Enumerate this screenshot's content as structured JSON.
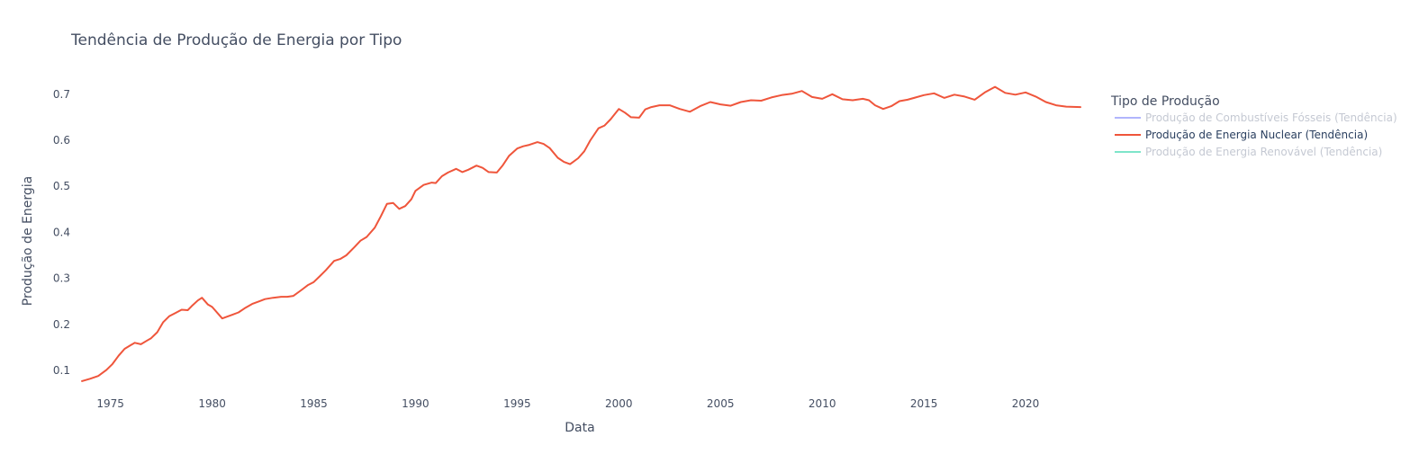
{
  "chart_data": {
    "type": "line",
    "title": "Tendência de Produção de Energia por Tipo",
    "xlabel": "Data",
    "ylabel": "Produção de Energia",
    "xlim": [
      1973.6,
      2022.7
    ],
    "ylim": [
      0.065,
      0.725
    ],
    "xticks": [
      1975,
      1980,
      1985,
      1990,
      1995,
      2000,
      2005,
      2010,
      2015,
      2020
    ],
    "yticks": [
      0.1,
      0.2,
      0.3,
      0.4,
      0.5,
      0.6,
      0.7
    ],
    "ytick_labels": [
      "0.1",
      "0.2",
      "0.3",
      "0.4",
      "0.5",
      "0.6",
      "0.7"
    ],
    "grid": false,
    "legend": {
      "title": "Tipo de Produção",
      "placement": "right",
      "entries": [
        {
          "name": "Produção de Combustíveis Fósseis (Tendência)",
          "color": "#636efa",
          "visible": false
        },
        {
          "name": "Produção de Energia Nuclear (Tendência)",
          "color": "#ef553b",
          "visible": true
        },
        {
          "name": "Produção de Energia Renovável (Tendência)",
          "color": "#00cc96",
          "visible": false
        }
      ]
    },
    "series": [
      {
        "name": "Produção de Energia Nuclear (Tendência)",
        "color": "#ef553b",
        "x": [
          1973.6,
          1974.0,
          1974.4,
          1974.8,
          1975.1,
          1975.4,
          1975.7,
          1976.0,
          1976.2,
          1976.5,
          1976.8,
          1977.0,
          1977.3,
          1977.6,
          1977.9,
          1978.2,
          1978.5,
          1978.8,
          1979.0,
          1979.3,
          1979.5,
          1979.8,
          1980.0,
          1980.5,
          1981.0,
          1981.3,
          1981.6,
          1982.0,
          1982.3,
          1982.6,
          1983.0,
          1983.4,
          1983.7,
          1984.0,
          1984.4,
          1984.7,
          1985.0,
          1985.3,
          1985.6,
          1986.0,
          1986.3,
          1986.6,
          1987.0,
          1987.3,
          1987.6,
          1988.0,
          1988.3,
          1988.6,
          1988.9,
          1989.2,
          1989.5,
          1989.8,
          1990.0,
          1990.4,
          1990.8,
          1991.0,
          1991.3,
          1991.6,
          1992.0,
          1992.3,
          1992.6,
          1993.0,
          1993.3,
          1993.6,
          1994.0,
          1994.3,
          1994.6,
          1995.0,
          1995.3,
          1995.6,
          1996.0,
          1996.3,
          1996.6,
          1997.0,
          1997.3,
          1997.6,
          1998.0,
          1998.3,
          1998.6,
          1999.0,
          1999.3,
          1999.6,
          2000.0,
          2000.3,
          2000.6,
          2001.0,
          2001.3,
          2001.6,
          2002.0,
          2002.5,
          2003.0,
          2003.5,
          2004.0,
          2004.5,
          2005.0,
          2005.5,
          2006.0,
          2006.5,
          2007.0,
          2007.5,
          2008.0,
          2008.5,
          2009.0,
          2009.5,
          2010.0,
          2010.5,
          2011.0,
          2011.5,
          2012.0,
          2012.3,
          2012.6,
          2013.0,
          2013.4,
          2013.8,
          2014.2,
          2014.6,
          2015.0,
          2015.5,
          2016.0,
          2016.5,
          2017.0,
          2017.5,
          2018.0,
          2018.5,
          2019.0,
          2019.5,
          2020.0,
          2020.5,
          2021.0,
          2021.5,
          2022.0,
          2022.7
        ],
        "y": [
          0.077,
          0.082,
          0.088,
          0.101,
          0.114,
          0.132,
          0.147,
          0.155,
          0.16,
          0.157,
          0.165,
          0.17,
          0.183,
          0.205,
          0.218,
          0.225,
          0.232,
          0.231,
          0.24,
          0.252,
          0.258,
          0.243,
          0.238,
          0.213,
          0.221,
          0.226,
          0.235,
          0.245,
          0.25,
          0.255,
          0.258,
          0.26,
          0.26,
          0.262,
          0.275,
          0.285,
          0.292,
          0.305,
          0.318,
          0.338,
          0.342,
          0.35,
          0.368,
          0.382,
          0.39,
          0.41,
          0.435,
          0.462,
          0.464,
          0.451,
          0.457,
          0.472,
          0.49,
          0.503,
          0.508,
          0.507,
          0.522,
          0.53,
          0.538,
          0.531,
          0.536,
          0.545,
          0.54,
          0.531,
          0.53,
          0.546,
          0.566,
          0.582,
          0.587,
          0.59,
          0.596,
          0.592,
          0.583,
          0.562,
          0.553,
          0.548,
          0.561,
          0.576,
          0.6,
          0.626,
          0.632,
          0.646,
          0.668,
          0.66,
          0.65,
          0.649,
          0.667,
          0.672,
          0.676,
          0.676,
          0.668,
          0.662,
          0.674,
          0.683,
          0.678,
          0.675,
          0.683,
          0.687,
          0.686,
          0.693,
          0.698,
          0.701,
          0.707,
          0.694,
          0.69,
          0.7,
          0.689,
          0.687,
          0.69,
          0.687,
          0.676,
          0.668,
          0.674,
          0.685,
          0.688,
          0.693,
          0.698,
          0.702,
          0.692,
          0.699,
          0.695,
          0.688,
          0.704,
          0.716,
          0.703,
          0.699,
          0.704,
          0.695,
          0.683,
          0.676,
          0.673,
          0.672
        ]
      }
    ]
  }
}
